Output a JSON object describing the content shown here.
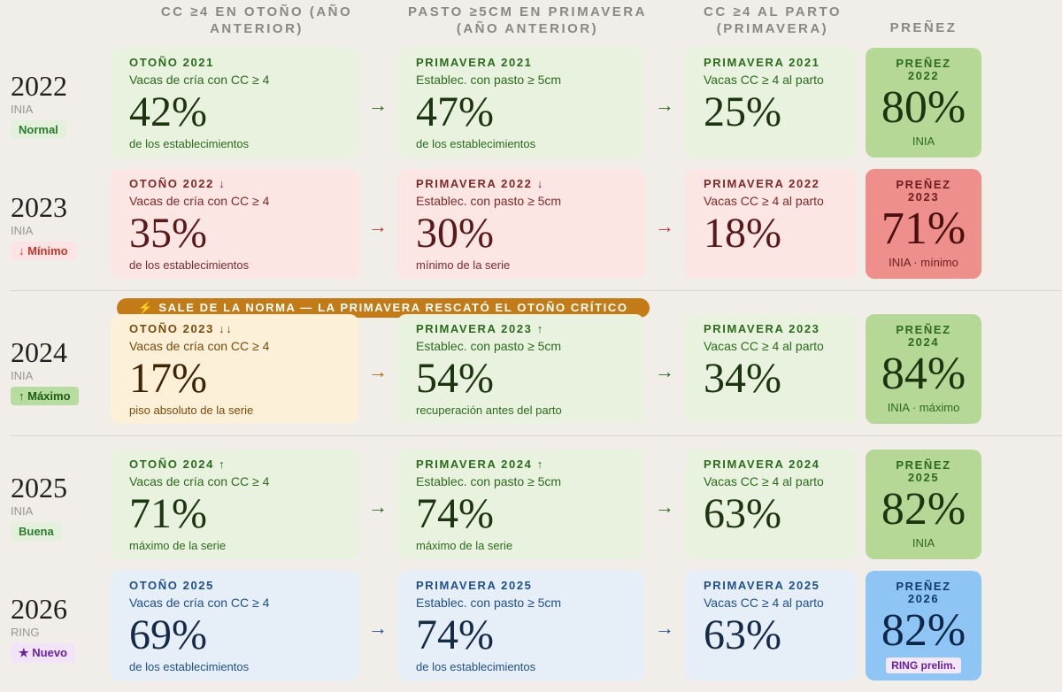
{
  "headers": {
    "col1": "CC ≥4 EN OTOÑO (AÑO ANTERIOR)",
    "col2": "PASTO ≥5CM EN PRIMAVERA (AÑO ANTERIOR)",
    "col3": "CC ≥4 AL PARTO (PRIMAVERA)",
    "col4": "PREÑEZ"
  },
  "banner": "⚡ SALE DE LA NORMA — LA PRIMAVERA RESCATÓ EL OTOÑO CRÍTICO",
  "arrow": "→",
  "rows": [
    {
      "year": "2022",
      "source": "INIA",
      "badge": "Normal",
      "badge_bg": "#e3f1dc",
      "badge_color": "#2c7a2c",
      "c1": {
        "title": "OTOÑO 2021",
        "sub": "Vacas de cría con CC ≥ 4",
        "pct": "42%",
        "note": "de los establecimientos"
      },
      "c2": {
        "title": "PRIMAVERA 2021",
        "sub": "Establec. con pasto ≥ 5cm",
        "pct": "47%",
        "note": "de los establecimientos"
      },
      "c3": {
        "title": "PRIMAVERA 2021",
        "sub": "Vacas CC ≥ 4 al parto",
        "pct": "25%"
      },
      "preg": {
        "label": "PREÑEZ",
        "year": "2022",
        "pct": "80%",
        "foot": "INIA"
      }
    },
    {
      "year": "2023",
      "source": "INIA",
      "badge": "↓ Mínimo",
      "badge_bg": "#fde3e3",
      "badge_color": "#c0392b",
      "c1": {
        "title": "OTOÑO 2022 ↓",
        "sub": "Vacas de cría con CC ≥ 4",
        "pct": "35%",
        "note": "de los establecimientos"
      },
      "c2": {
        "title": "PRIMAVERA 2022 ↓",
        "sub": "Establec. con pasto ≥ 5cm",
        "pct": "30%",
        "note": "mínimo de la serie"
      },
      "c3": {
        "title": "PRIMAVERA 2022",
        "sub": "Vacas CC ≥ 4 al parto",
        "pct": "18%"
      },
      "preg": {
        "label": "PREÑEZ",
        "year": "2023",
        "pct": "71%",
        "foot": "INIA · mínimo"
      }
    },
    {
      "year": "2024",
      "source": "INIA",
      "badge": "↑ Máximo",
      "badge_bg": "#b7dca0",
      "badge_color": "#1f5a16",
      "c1": {
        "title": "OTOÑO 2023 ↓↓",
        "sub": "Vacas de cría con CC ≥ 4",
        "pct": "17%",
        "note": "piso absoluto de la serie"
      },
      "c2": {
        "title": "PRIMAVERA 2023 ↑",
        "sub": "Establec. con pasto ≥ 5cm",
        "pct": "54%",
        "note": "recuperación antes del parto"
      },
      "c3": {
        "title": "PRIMAVERA 2023",
        "sub": "Vacas CC ≥ 4 al parto",
        "pct": "34%"
      },
      "preg": {
        "label": "PREÑEZ",
        "year": "2024",
        "pct": "84%",
        "foot": "INIA · máximo"
      }
    },
    {
      "year": "2025",
      "source": "INIA",
      "badge": "Buena",
      "badge_bg": "#e3f1dc",
      "badge_color": "#2c7a2c",
      "c1": {
        "title": "OTOÑO 2024 ↑",
        "sub": "Vacas de cría con CC ≥ 4",
        "pct": "71%",
        "note": "máximo de la serie"
      },
      "c2": {
        "title": "PRIMAVERA 2024 ↑",
        "sub": "Establec. con pasto ≥ 5cm",
        "pct": "74%",
        "note": "máximo de la serie"
      },
      "c3": {
        "title": "PRIMAVERA 2024",
        "sub": "Vacas CC ≥ 4 al parto",
        "pct": "63%"
      },
      "preg": {
        "label": "PREÑEZ",
        "year": "2025",
        "pct": "82%",
        "foot": "INIA"
      }
    },
    {
      "year": "2026",
      "source": "RING",
      "badge": "★ Nuevo",
      "badge_bg": "#f1e4f8",
      "badge_color": "#6a22a0",
      "c1": {
        "title": "OTOÑO 2025",
        "sub": "Vacas de cría con CC ≥ 4",
        "pct": "69%",
        "note": "de los establecimientos"
      },
      "c2": {
        "title": "PRIMAVERA 2025",
        "sub": "Establec. con pasto ≥ 5cm",
        "pct": "74%",
        "note": "de los establecimientos"
      },
      "c3": {
        "title": "PRIMAVERA 2025",
        "sub": "Vacas CC ≥ 4 al parto",
        "pct": "63%"
      },
      "preg": {
        "label": "PREÑEZ",
        "year": "2026",
        "pct": "82%",
        "foot": "RING prelim."
      }
    }
  ]
}
